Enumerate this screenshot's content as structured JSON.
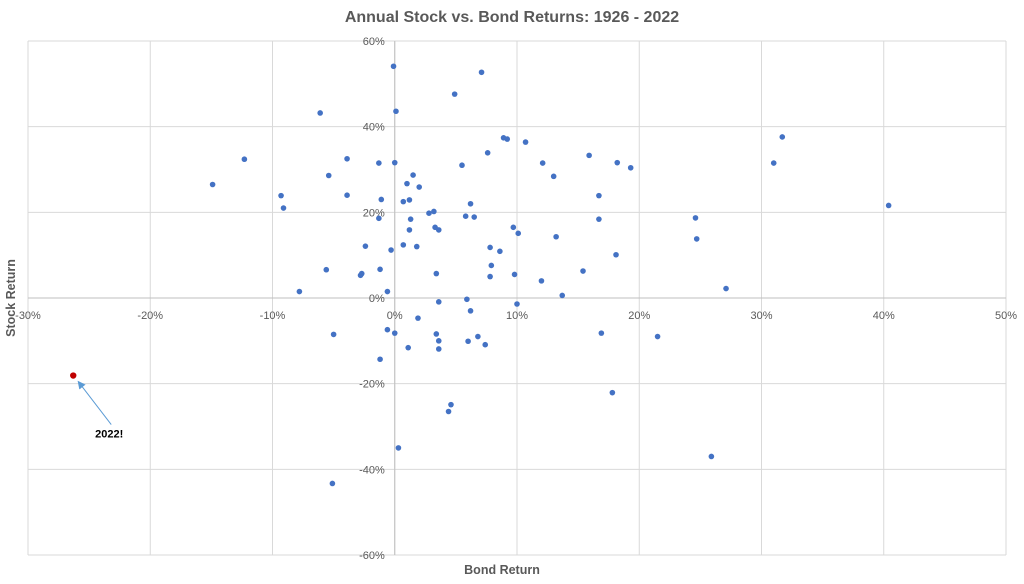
{
  "chart_data": {
    "type": "scatter",
    "title": "Annual Stock vs. Bond Returns: 1926 - 2022",
    "xlabel": "Bond Return",
    "ylabel": "Stock Return",
    "xlim": [
      -30,
      50
    ],
    "ylim": [
      -60,
      60
    ],
    "xticks": [
      -30,
      -20,
      -10,
      0,
      10,
      20,
      30,
      40,
      50
    ],
    "yticks": [
      -60,
      -40,
      -20,
      0,
      20,
      40,
      60
    ],
    "xtick_labels": [
      "-30%",
      "-20%",
      "-10%",
      "0%",
      "10%",
      "20%",
      "30%",
      "40%",
      "50%"
    ],
    "ytick_labels": [
      "-60%",
      "-40%",
      "-20%",
      "0%",
      "20%",
      "40%",
      "60%"
    ],
    "grid": true,
    "colors": {
      "points": "#4472c4",
      "highlight": "#c00000",
      "arrow": "#5b9bd5"
    },
    "series": [
      {
        "values": [
          [
            -0.1,
            54.1
          ],
          [
            0.1,
            43.6
          ],
          [
            4.9,
            47.6
          ],
          [
            7.1,
            52.7
          ],
          [
            -6.1,
            43.2
          ],
          [
            -12.3,
            32.4
          ],
          [
            -14.9,
            26.5
          ],
          [
            -9.3,
            23.9
          ],
          [
            -9.1,
            21.0
          ],
          [
            -5.4,
            28.6
          ],
          [
            -3.9,
            32.5
          ],
          [
            -3.9,
            24.0
          ],
          [
            -1.3,
            31.5
          ],
          [
            0.0,
            31.6
          ],
          [
            5.5,
            31.0
          ],
          [
            8.9,
            37.4
          ],
          [
            9.2,
            37.1
          ],
          [
            10.7,
            36.4
          ],
          [
            7.6,
            33.9
          ],
          [
            12.1,
            31.5
          ],
          [
            15.9,
            33.3
          ],
          [
            18.2,
            31.6
          ],
          [
            19.3,
            30.4
          ],
          [
            13.0,
            28.4
          ],
          [
            31.0,
            31.5
          ],
          [
            31.7,
            37.6
          ],
          [
            40.4,
            21.6
          ],
          [
            1.5,
            28.7
          ],
          [
            2.0,
            25.9
          ],
          [
            1.0,
            26.7
          ],
          [
            1.2,
            22.9
          ],
          [
            0.7,
            22.5
          ],
          [
            -1.1,
            23.0
          ],
          [
            -1.3,
            18.6
          ],
          [
            1.3,
            18.4
          ],
          [
            1.2,
            15.9
          ],
          [
            2.8,
            19.8
          ],
          [
            3.2,
            20.2
          ],
          [
            3.3,
            16.5
          ],
          [
            3.6,
            15.9
          ],
          [
            5.8,
            19.1
          ],
          [
            6.2,
            22.0
          ],
          [
            6.5,
            18.9
          ],
          [
            9.7,
            16.5
          ],
          [
            10.1,
            15.1
          ],
          [
            13.2,
            14.3
          ],
          [
            16.7,
            23.9
          ],
          [
            16.7,
            18.4
          ],
          [
            24.6,
            18.7
          ],
          [
            24.7,
            13.8
          ],
          [
            18.1,
            10.1
          ],
          [
            -2.4,
            12.1
          ],
          [
            0.7,
            12.4
          ],
          [
            1.8,
            12.0
          ],
          [
            -0.3,
            11.2
          ],
          [
            7.8,
            11.8
          ],
          [
            8.6,
            10.9
          ],
          [
            7.9,
            7.6
          ],
          [
            -5.6,
            6.6
          ],
          [
            -1.2,
            6.7
          ],
          [
            -2.7,
            5.7
          ],
          [
            -2.8,
            5.3
          ],
          [
            3.4,
            5.7
          ],
          [
            7.8,
            5.0
          ],
          [
            9.8,
            5.5
          ],
          [
            12.0,
            4.0
          ],
          [
            15.4,
            6.3
          ],
          [
            -7.8,
            1.5
          ],
          [
            -0.6,
            1.5
          ],
          [
            3.6,
            -0.9
          ],
          [
            5.9,
            -0.3
          ],
          [
            6.2,
            -3.0
          ],
          [
            10.0,
            -1.4
          ],
          [
            13.7,
            0.6
          ],
          [
            27.1,
            2.2
          ],
          [
            -0.6,
            -7.4
          ],
          [
            1.9,
            -4.7
          ],
          [
            0.0,
            -8.2
          ],
          [
            -5.0,
            -8.5
          ],
          [
            3.4,
            -8.4
          ],
          [
            6.8,
            -9.0
          ],
          [
            7.4,
            -10.9
          ],
          [
            3.6,
            -10.0
          ],
          [
            6.0,
            -10.1
          ],
          [
            3.6,
            -11.9
          ],
          [
            1.1,
            -11.6
          ],
          [
            -1.2,
            -14.3
          ],
          [
            16.9,
            -8.2
          ],
          [
            21.5,
            -9.0
          ],
          [
            17.8,
            -22.1
          ],
          [
            4.6,
            -24.9
          ],
          [
            4.4,
            -26.5
          ],
          [
            0.3,
            -35.0
          ],
          [
            25.9,
            -37.0
          ],
          [
            -5.1,
            -43.3
          ]
        ]
      },
      {
        "values": [
          [
            -26.3,
            -18.1
          ]
        ],
        "annotation": "2022!"
      }
    ]
  }
}
